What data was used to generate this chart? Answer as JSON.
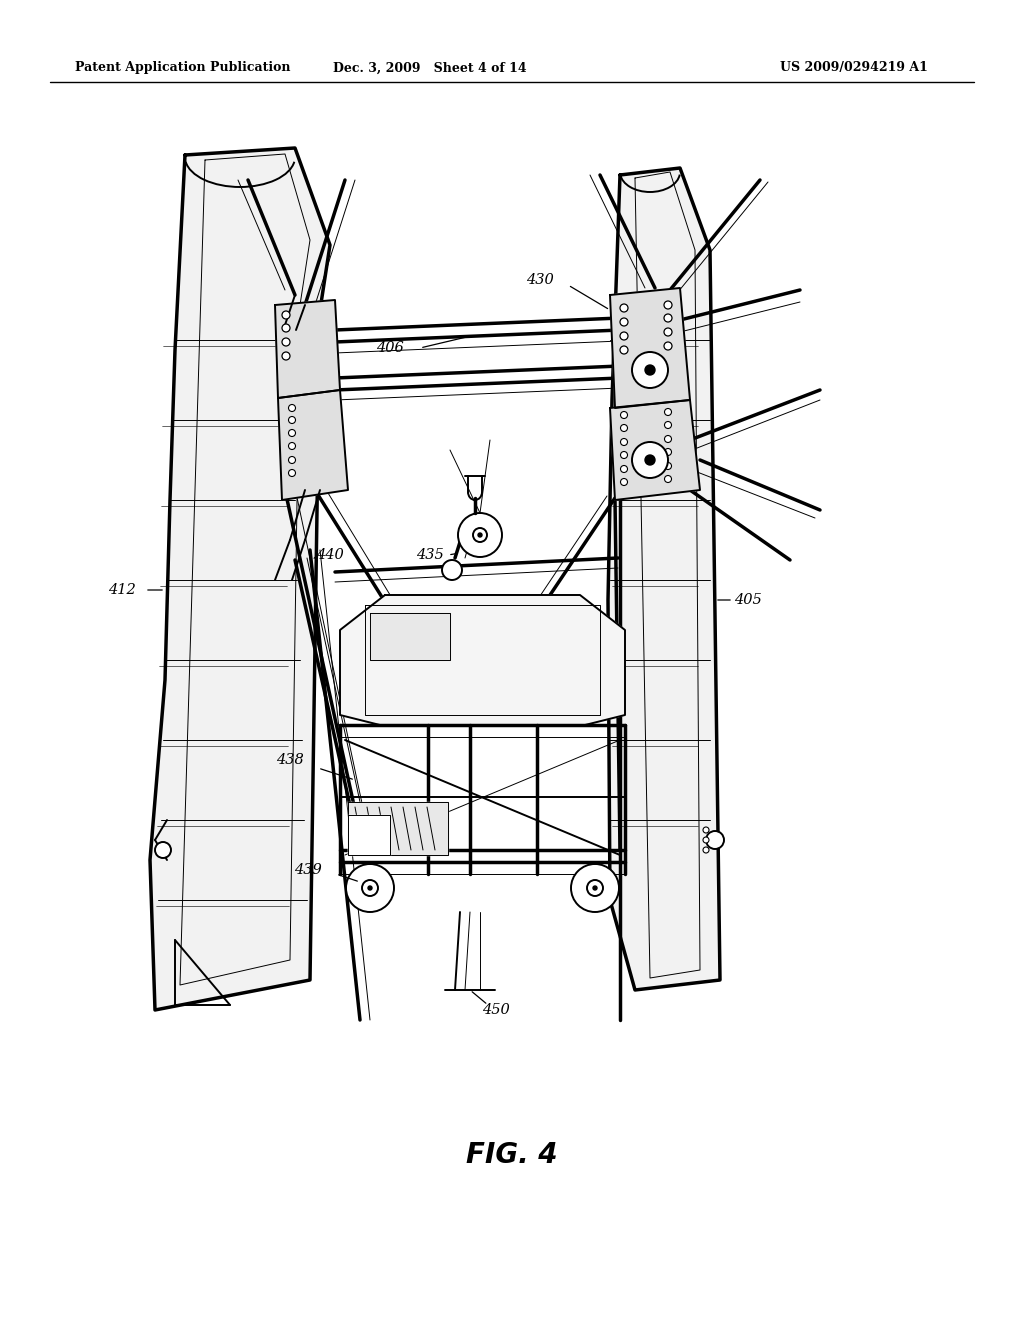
{
  "title": "FIG. 4",
  "header_left": "Patent Application Publication",
  "header_mid": "Dec. 3, 2009   Sheet 4 of 14",
  "header_right": "US 2009/0294219 A1",
  "background_color": "#ffffff",
  "line_color": "#000000",
  "lw_main": 1.4,
  "lw_thick": 2.5,
  "lw_thin": 0.7,
  "label_font_size": 10.5
}
